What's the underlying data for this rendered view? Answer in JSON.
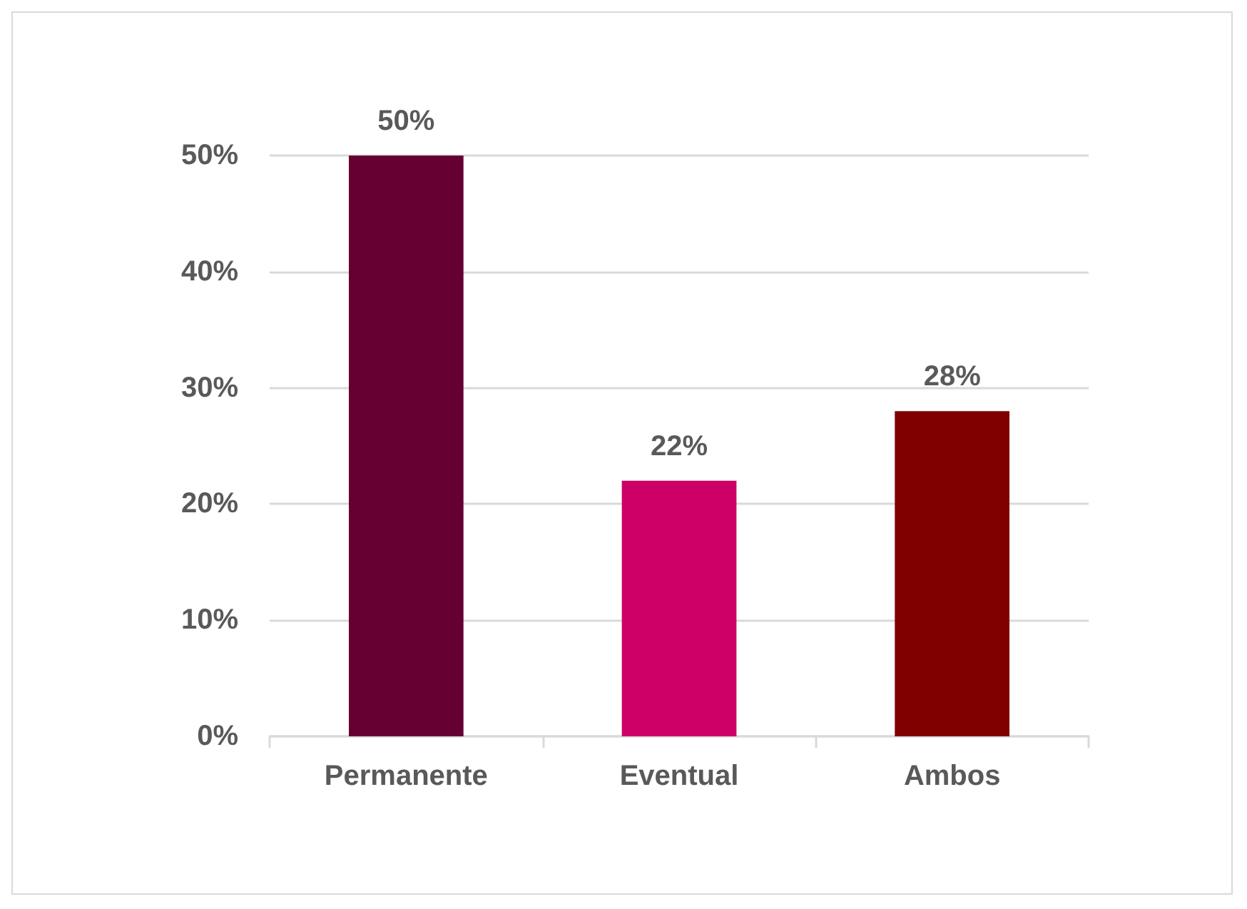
{
  "chart_data": {
    "type": "bar",
    "categories": [
      "Permanente",
      "Eventual",
      "Ambos"
    ],
    "values": [
      50,
      22,
      28
    ],
    "colors": [
      "#660033",
      "#cc0066",
      "#800000"
    ],
    "value_labels": [
      "50%",
      "22%",
      "28%"
    ],
    "ylim": [
      0,
      50
    ],
    "yticks": [
      {
        "value": 0,
        "label": "0%"
      },
      {
        "value": 10,
        "label": "10%"
      },
      {
        "value": 20,
        "label": "20%"
      },
      {
        "value": 30,
        "label": "30%"
      },
      {
        "value": 40,
        "label": "40%"
      },
      {
        "value": 50,
        "label": "50%"
      }
    ],
    "grid": true
  }
}
